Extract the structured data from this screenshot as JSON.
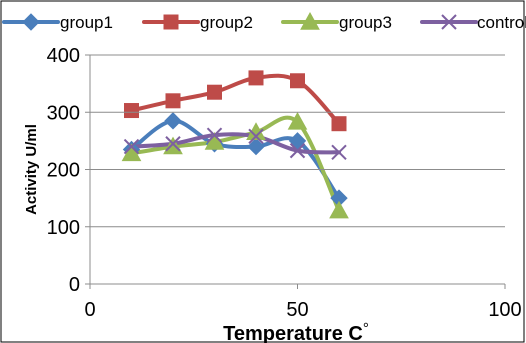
{
  "chart_data": {
    "type": "scatter",
    "title": "",
    "xlabel": "Temperature C",
    "xlabel_suffix": "°",
    "ylabel": "Activity U/ml",
    "xlim": [
      0,
      100
    ],
    "ylim": [
      0,
      400
    ],
    "x_ticks": [
      "0",
      "50",
      "100"
    ],
    "y_ticks": [
      "0",
      "100",
      "200",
      "300",
      "400"
    ],
    "grid": "horizontal",
    "legend_position": "top",
    "smooth_lines": true,
    "series": [
      {
        "name": "group1",
        "color": "#4a7ebb",
        "marker": "diamond",
        "x": [
          10,
          20,
          30,
          40,
          50,
          60
        ],
        "y": [
          235,
          285,
          245,
          240,
          250,
          150
        ]
      },
      {
        "name": "group2",
        "color": "#be4b48",
        "marker": "square",
        "x": [
          10,
          20,
          30,
          40,
          50,
          60
        ],
        "y": [
          303,
          320,
          335,
          360,
          355,
          280
        ]
      },
      {
        "name": "group3",
        "color": "#98b954",
        "marker": "triangle",
        "x": [
          10,
          20,
          30,
          40,
          50,
          60
        ],
        "y": [
          228,
          240,
          248,
          265,
          283,
          128
        ]
      },
      {
        "name": "control",
        "color": "#7d60a0",
        "marker": "x",
        "x": [
          10,
          20,
          30,
          40,
          50,
          60
        ],
        "y": [
          240,
          245,
          260,
          258,
          233,
          230
        ]
      }
    ]
  }
}
